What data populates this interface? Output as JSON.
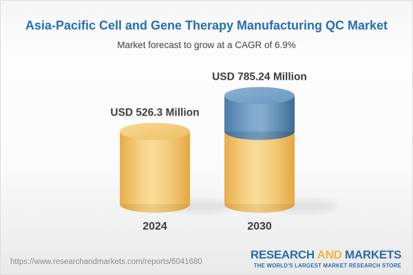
{
  "header": {
    "title": "Asia-Pacific Cell and Gene Therapy Manufacturing QC Market",
    "subtitle": "Market forecast to grow at a CAGR of 6.9%"
  },
  "chart_data": {
    "type": "bar",
    "variant": "3d-cylinder",
    "title": "Asia-Pacific Cell and Gene Therapy Manufacturing QC Market",
    "subtitle": "Market forecast to grow at a CAGR of 6.9%",
    "unit": "USD Million",
    "cagr_percent": 6.9,
    "categories": [
      "2024",
      "2030"
    ],
    "values": [
      526.3,
      785.24
    ],
    "legend": "none",
    "axes": "none",
    "grid": "off",
    "bars": [
      {
        "category": "2024",
        "label": "USD 526.3 Million",
        "value": 526.3,
        "segments": [
          {
            "value": 526.3,
            "color": "gold"
          }
        ]
      },
      {
        "category": "2030",
        "label": "USD 785.24 Million",
        "value": 785.24,
        "segments": [
          {
            "value": 526.3,
            "color": "gold"
          },
          {
            "value": 258.94,
            "color": "blue"
          }
        ]
      }
    ]
  },
  "palette": {
    "gold_body": [
      [
        0,
        "#e8ad4a"
      ],
      [
        0.28,
        "#f5cf82"
      ],
      [
        0.46,
        "#f9dd9a"
      ],
      [
        0.72,
        "#f2c978"
      ],
      [
        1,
        "#e5a742"
      ]
    ],
    "gold_top": [
      [
        0,
        "#f8da94"
      ],
      [
        1,
        "#ecbf65"
      ]
    ],
    "blue_body": [
      [
        0,
        "#4d7ca8"
      ],
      [
        0.38,
        "#7fa9cd"
      ],
      [
        0.54,
        "#86aed0"
      ],
      [
        0.8,
        "#5e89af"
      ],
      [
        1,
        "#3c6b96"
      ]
    ],
    "blue_top": [
      [
        0,
        "#8ab1d3"
      ],
      [
        1,
        "#6d98c0"
      ]
    ],
    "gold_rim": "rgba(150,90,0,0.12)",
    "blue_rim": "rgba(20,40,70,0.16)",
    "shadow": "rgba(60,60,60,0.10)",
    "title_color": "#2470b3",
    "subtitle_color": "#3f3f3f",
    "label_color": "#3d3d3d",
    "url_color": "#8b8b8b",
    "logo_blue": "#2a6ba6",
    "logo_gold": "#f0b440"
  },
  "footer": {
    "url": "https://www.researchandmarkets.com/reports/6041680",
    "logo": {
      "research": "RESEARCH",
      "and": "AND",
      "markets": "MARKETS",
      "tagline": "THE WORLD'S LARGEST MARKET RESEARCH STORE"
    }
  }
}
